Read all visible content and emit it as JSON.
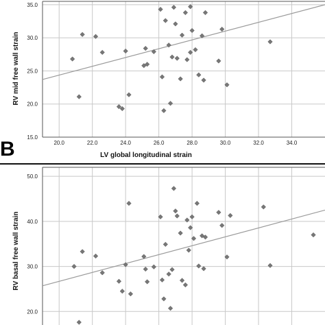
{
  "panels": [
    {
      "letter": ""
    },
    {
      "letter": "B"
    }
  ],
  "colors": {
    "grid": "#c8c8c8",
    "frame": "#555555",
    "marker": "#777777",
    "fit": "#9a9a9a",
    "divider": "#111111"
  },
  "chart_data": [
    {
      "type": "scatter",
      "title": "",
      "xlabel": "LV global longitudinal strain",
      "ylabel": "RV mid free wall strain",
      "xlim": [
        19,
        36
      ],
      "ylim": [
        15,
        35.5
      ],
      "xticks": [
        20.0,
        22.0,
        24.0,
        26.0,
        28.0,
        30.0,
        32.0,
        34.0
      ],
      "xtick_labels": [
        "20.0",
        "22.0",
        "24.0",
        "26.0",
        "28.0",
        "30.0",
        "32.0",
        "34.0"
      ],
      "yticks": [
        15.0,
        20.0,
        25.0,
        30.0,
        35.0
      ],
      "ytick_labels": [
        "15.0",
        "20.0",
        "25.0",
        "30.0",
        "35.0"
      ],
      "grid": true,
      "fit_line": {
        "x": [
          19,
          36
        ],
        "y": [
          23.7,
          35.0
        ]
      },
      "points": [
        {
          "x": 20.8,
          "y": 26.8
        },
        {
          "x": 21.2,
          "y": 21.1
        },
        {
          "x": 21.4,
          "y": 30.5
        },
        {
          "x": 22.2,
          "y": 30.2
        },
        {
          "x": 22.6,
          "y": 27.8
        },
        {
          "x": 23.6,
          "y": 19.6
        },
        {
          "x": 23.8,
          "y": 19.3
        },
        {
          "x": 24.0,
          "y": 28.0
        },
        {
          "x": 24.2,
          "y": 21.4
        },
        {
          "x": 25.1,
          "y": 25.8
        },
        {
          "x": 25.2,
          "y": 28.4
        },
        {
          "x": 25.3,
          "y": 26.0
        },
        {
          "x": 25.7,
          "y": 27.9
        },
        {
          "x": 26.1,
          "y": 34.3
        },
        {
          "x": 26.2,
          "y": 24.1
        },
        {
          "x": 26.3,
          "y": 19.0
        },
        {
          "x": 26.4,
          "y": 32.6
        },
        {
          "x": 26.6,
          "y": 28.9
        },
        {
          "x": 26.7,
          "y": 20.1
        },
        {
          "x": 26.8,
          "y": 27.1
        },
        {
          "x": 26.9,
          "y": 34.6
        },
        {
          "x": 27.0,
          "y": 32.1
        },
        {
          "x": 27.1,
          "y": 26.9
        },
        {
          "x": 27.3,
          "y": 23.8
        },
        {
          "x": 27.4,
          "y": 30.4
        },
        {
          "x": 27.6,
          "y": 33.8
        },
        {
          "x": 27.7,
          "y": 26.7
        },
        {
          "x": 27.9,
          "y": 34.7
        },
        {
          "x": 27.9,
          "y": 27.8
        },
        {
          "x": 28.0,
          "y": 31.1
        },
        {
          "x": 28.2,
          "y": 28.2
        },
        {
          "x": 28.4,
          "y": 24.4
        },
        {
          "x": 28.6,
          "y": 30.3
        },
        {
          "x": 28.7,
          "y": 23.6
        },
        {
          "x": 28.8,
          "y": 33.8
        },
        {
          "x": 29.6,
          "y": 26.5
        },
        {
          "x": 29.8,
          "y": 31.3
        },
        {
          "x": 30.1,
          "y": 22.9
        },
        {
          "x": 32.7,
          "y": 29.4
        }
      ]
    },
    {
      "type": "scatter",
      "title": "",
      "xlabel": "",
      "ylabel": "RV basal free wall strain",
      "xlim": [
        19,
        36
      ],
      "ylim": [
        17,
        52
      ],
      "xticks": [
        20.0,
        22.0,
        24.0,
        26.0,
        28.0,
        30.0,
        32.0,
        34.0
      ],
      "yticks": [
        20.0,
        30.0,
        40.0,
        50.0
      ],
      "ytick_labels": [
        "20.0",
        "30.0",
        "40.0",
        "50.0"
      ],
      "grid": true,
      "fit_line": {
        "x": [
          19,
          36
        ],
        "y": [
          25.7,
          42.5
        ]
      },
      "points": [
        {
          "x": 20.9,
          "y": 30.0
        },
        {
          "x": 21.2,
          "y": 17.6
        },
        {
          "x": 21.4,
          "y": 33.3
        },
        {
          "x": 22.2,
          "y": 32.3
        },
        {
          "x": 22.6,
          "y": 28.6
        },
        {
          "x": 23.6,
          "y": 26.7
        },
        {
          "x": 23.8,
          "y": 24.5
        },
        {
          "x": 24.0,
          "y": 30.4
        },
        {
          "x": 24.2,
          "y": 44.0
        },
        {
          "x": 24.3,
          "y": 23.9
        },
        {
          "x": 25.1,
          "y": 32.2
        },
        {
          "x": 25.2,
          "y": 29.4
        },
        {
          "x": 25.3,
          "y": 26.6
        },
        {
          "x": 25.7,
          "y": 29.9
        },
        {
          "x": 26.1,
          "y": 41.0
        },
        {
          "x": 26.2,
          "y": 27.0
        },
        {
          "x": 26.3,
          "y": 22.8
        },
        {
          "x": 26.4,
          "y": 34.9
        },
        {
          "x": 26.6,
          "y": 28.3
        },
        {
          "x": 26.7,
          "y": 20.7
        },
        {
          "x": 26.8,
          "y": 29.3
        },
        {
          "x": 26.9,
          "y": 47.3
        },
        {
          "x": 27.0,
          "y": 42.3
        },
        {
          "x": 27.1,
          "y": 41.2
        },
        {
          "x": 27.3,
          "y": 37.4
        },
        {
          "x": 27.4,
          "y": 26.9
        },
        {
          "x": 27.6,
          "y": 25.9
        },
        {
          "x": 27.7,
          "y": 40.3
        },
        {
          "x": 27.8,
          "y": 33.6
        },
        {
          "x": 27.9,
          "y": 38.6
        },
        {
          "x": 28.0,
          "y": 41.0
        },
        {
          "x": 28.1,
          "y": 36.2
        },
        {
          "x": 28.3,
          "y": 44.0
        },
        {
          "x": 28.4,
          "y": 30.1
        },
        {
          "x": 28.6,
          "y": 36.8
        },
        {
          "x": 28.8,
          "y": 36.5
        },
        {
          "x": 28.7,
          "y": 29.5
        },
        {
          "x": 29.6,
          "y": 42.0
        },
        {
          "x": 29.8,
          "y": 39.1
        },
        {
          "x": 30.1,
          "y": 32.1
        },
        {
          "x": 30.3,
          "y": 41.3
        },
        {
          "x": 32.3,
          "y": 43.2
        },
        {
          "x": 32.7,
          "y": 30.2
        },
        {
          "x": 35.3,
          "y": 37.0
        }
      ]
    }
  ]
}
